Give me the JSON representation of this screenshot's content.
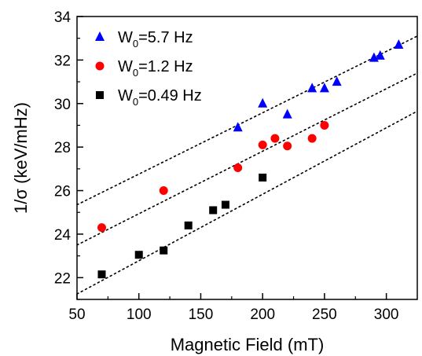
{
  "chart_data": {
    "type": "scatter",
    "xlabel": "Magnetic Field (mT)",
    "ylabel": "1/σ (keV/mHz)",
    "xlim": [
      50,
      325
    ],
    "ylim": [
      21,
      34
    ],
    "xticks": [
      50,
      100,
      150,
      200,
      250,
      300
    ],
    "yticks": [
      22,
      24,
      26,
      28,
      30,
      32,
      34
    ],
    "grid": false,
    "legend_position": "top-left",
    "series": [
      {
        "name": "W0=5.7 Hz",
        "legend_main": "W",
        "legend_sub": "0",
        "legend_rest": "=5.7 Hz",
        "marker": "triangle",
        "color": "#0000ff",
        "points": [
          [
            180,
            28.9
          ],
          [
            200,
            30.0
          ],
          [
            220,
            29.5
          ],
          [
            240,
            30.7
          ],
          [
            250,
            30.7
          ],
          [
            260,
            31.0
          ],
          [
            290,
            32.1
          ],
          [
            295,
            32.2
          ],
          [
            310,
            32.7
          ]
        ],
        "fit": [
          [
            50,
            25.35
          ],
          [
            325,
            33.1
          ]
        ]
      },
      {
        "name": "W0=1.2 Hz",
        "legend_main": "W",
        "legend_sub": "0",
        "legend_rest": "=1.2 Hz",
        "marker": "circle",
        "color": "#ff0000",
        "points": [
          [
            70,
            24.3
          ],
          [
            120,
            26.0
          ],
          [
            180,
            27.05
          ],
          [
            200,
            28.1
          ],
          [
            210,
            28.4
          ],
          [
            220,
            28.05
          ],
          [
            240,
            28.4
          ],
          [
            250,
            29.0
          ]
        ],
        "fit": [
          [
            50,
            23.5
          ],
          [
            325,
            31.4
          ]
        ]
      },
      {
        "name": "W0=0.49 Hz",
        "legend_main": "W",
        "legend_sub": "0",
        "legend_rest": "=0.49 Hz",
        "marker": "square",
        "color": "#000000",
        "points": [
          [
            70,
            22.15
          ],
          [
            100,
            23.05
          ],
          [
            120,
            23.25
          ],
          [
            140,
            24.4
          ],
          [
            160,
            25.1
          ],
          [
            170,
            25.35
          ],
          [
            200,
            26.6
          ]
        ],
        "fit": [
          [
            50,
            21.25
          ],
          [
            325,
            29.65
          ]
        ]
      }
    ]
  }
}
